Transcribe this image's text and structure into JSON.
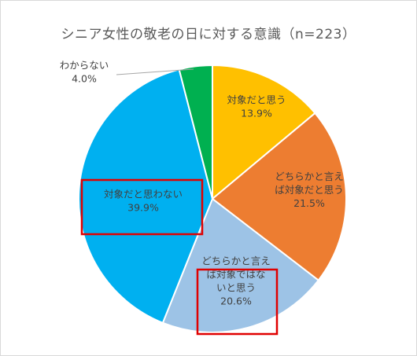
{
  "chart_data": {
    "type": "pie",
    "title": "シニア女性の敬老の日に対する意識（n=223）",
    "slices": [
      {
        "label": [
          "対象だと思う"
        ],
        "value": 13.9,
        "value_label": "13.9%",
        "color": "#FFC000"
      },
      {
        "label": [
          "どちらかと言え",
          "ば対象だと思う"
        ],
        "value": 21.5,
        "value_label": "21.5%",
        "color": "#ED7D31"
      },
      {
        "label": [
          "どちらかと言え",
          "ば対象ではな",
          "いと思う"
        ],
        "value": 20.6,
        "value_label": "20.6%",
        "color": "#9DC3E6",
        "highlighted": true
      },
      {
        "label": [
          "対象だと思わない"
        ],
        "value": 39.9,
        "value_label": "39.9%",
        "color": "#00B0F0",
        "highlighted": true
      },
      {
        "label": [
          "わからない"
        ],
        "value": 4.0,
        "value_label": "4.0%",
        "color": "#00B050"
      }
    ],
    "start_angle": "12 o'clock",
    "direction": "clockwise",
    "highlight_color": "#E00000"
  }
}
